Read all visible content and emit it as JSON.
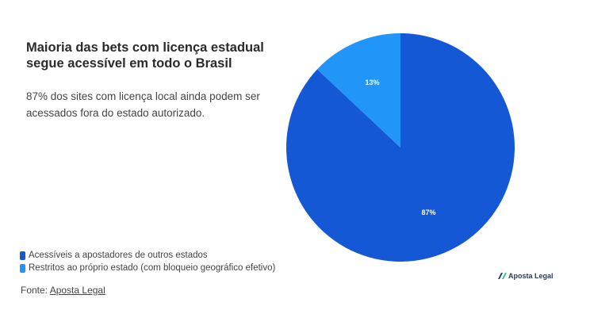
{
  "title": "Maioria das bets com licença estadual segue acessível em todo o Brasil",
  "subtitle": "87% dos sites com licença local ainda podem ser acessados fora do estado autorizado.",
  "source_label": "Fonte:",
  "source_link": "Aposta Legal",
  "brand": "Aposta Legal",
  "chart_data": {
    "type": "pie",
    "slices": [
      {
        "name": "Acessíveis a apostadores de outros estados",
        "value": 87,
        "label": "87%",
        "color": "#1558d6"
      },
      {
        "name": "Restritos ao próprio estado (com bloqueio geográfico efetivo)",
        "value": 13,
        "label": "13%",
        "color": "#2196f8"
      }
    ],
    "legend_position": "bottom-left"
  }
}
